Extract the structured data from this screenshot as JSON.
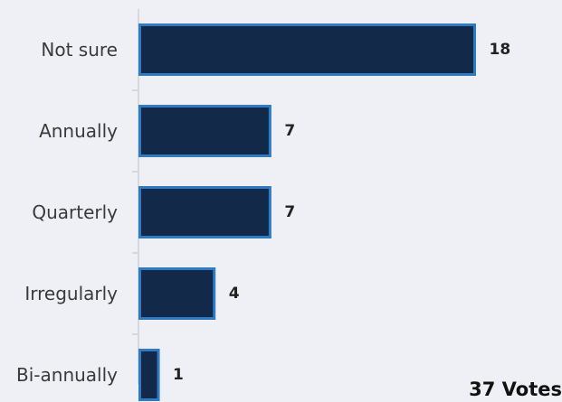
{
  "chart_data": {
    "type": "bar",
    "orientation": "horizontal",
    "categories": [
      "Not sure",
      "Annually",
      "Quarterly",
      "Irregularly",
      "Bi-annually"
    ],
    "values": [
      18,
      7,
      7,
      4,
      1
    ],
    "title": "",
    "xlabel": "",
    "ylabel": "",
    "xlim": [
      0,
      18
    ],
    "grid": false,
    "colors": {
      "bar_fill": "#12294a",
      "bar_stroke": "#2e7bbf",
      "axis": "#d6d8de"
    }
  },
  "footer": {
    "votes_label": "37 Votes"
  }
}
